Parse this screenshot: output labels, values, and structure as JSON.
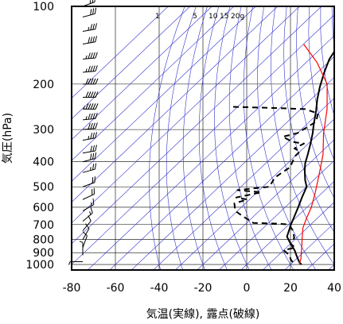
{
  "chart_data": {
    "type": "line",
    "title": "",
    "xlabel": "気温(実線), 露点(破線)",
    "ylabel": "気圧(hPa)",
    "x_ticks": [
      -80,
      -60,
      -40,
      -20,
      0,
      20,
      40
    ],
    "y_ticks": [
      100,
      200,
      300,
      400,
      500,
      600,
      700,
      800,
      900,
      1000
    ],
    "xlim": [
      -80,
      40
    ],
    "ylim": [
      1050,
      100
    ],
    "y_scale": "log",
    "grid": true,
    "mixing_ratio_labels": [
      "1",
      "5",
      "10",
      "15",
      "20g"
    ],
    "colors": {
      "temperature": "#000000",
      "dewpoint": "#000000",
      "reference": "#ff0000",
      "isopleths": "#3333cc",
      "grid": "#000000",
      "wind": "#000000"
    },
    "series": [
      {
        "name": "気温",
        "style": "solid",
        "points": [
          [
            -69,
            100
          ],
          [
            -68,
            108
          ],
          [
            -66,
            118
          ],
          [
            -65,
            130
          ],
          [
            -63,
            145
          ],
          [
            -61,
            160
          ],
          [
            -57,
            180
          ],
          [
            -52,
            205
          ],
          [
            -47,
            230
          ],
          [
            -42,
            255
          ],
          [
            -37,
            285
          ],
          [
            -33,
            310
          ],
          [
            -29,
            340
          ],
          [
            -25,
            375
          ],
          [
            -22,
            405
          ],
          [
            -19,
            430
          ],
          [
            -14,
            470
          ],
          [
            -10,
            500
          ],
          [
            -7,
            550
          ],
          [
            -4,
            600
          ],
          [
            1,
            700
          ],
          [
            5,
            780
          ],
          [
            10,
            830
          ],
          [
            15,
            880
          ],
          [
            19,
            930
          ],
          [
            23,
            980
          ],
          [
            25,
            1000
          ]
        ]
      },
      {
        "name": "露点",
        "style": "dashed",
        "points": [
          [
            -82,
            245
          ],
          [
            -60,
            248
          ],
          [
            -48,
            250
          ],
          [
            -40,
            260
          ],
          [
            -37,
            280
          ],
          [
            -40,
            310
          ],
          [
            -45,
            320
          ],
          [
            -38,
            335
          ],
          [
            -32,
            340
          ],
          [
            -34,
            355
          ],
          [
            -30,
            365
          ],
          [
            -30,
            380
          ],
          [
            -27,
            420
          ],
          [
            -29,
            460
          ],
          [
            -27,
            500
          ],
          [
            -40,
            515
          ],
          [
            -34,
            520
          ],
          [
            -28,
            525
          ],
          [
            -37,
            550
          ],
          [
            -31,
            560
          ],
          [
            -35,
            580
          ],
          [
            -31,
            620
          ],
          [
            -25,
            650
          ],
          [
            -17,
            690
          ],
          [
            -5,
            695
          ],
          [
            0,
            700
          ],
          [
            5,
            740
          ],
          [
            9,
            790
          ],
          [
            10,
            830
          ],
          [
            14,
            860
          ],
          [
            10,
            880
          ],
          [
            15,
            920
          ],
          [
            18,
            960
          ],
          [
            22,
            1000
          ]
        ]
      },
      {
        "name": "",
        "style": "solid-red",
        "points": [
          [
            -80,
            140
          ],
          [
            -65,
            165
          ],
          [
            -50,
            200
          ],
          [
            -38,
            250
          ],
          [
            -28,
            310
          ],
          [
            -18,
            375
          ],
          [
            -10,
            450
          ],
          [
            -3,
            530
          ],
          [
            2,
            600
          ],
          [
            5,
            660
          ],
          [
            8,
            720
          ],
          [
            12,
            780
          ],
          [
            17,
            860
          ],
          [
            22,
            950
          ],
          [
            24,
            1000
          ]
        ]
      }
    ],
    "wind_barbs": [
      {
        "p": 100,
        "dir": 250,
        "spd": 25
      },
      {
        "p": 110,
        "dir": 255,
        "spd": 30
      },
      {
        "p": 125,
        "dir": 260,
        "spd": 35
      },
      {
        "p": 140,
        "dir": 260,
        "spd": 40
      },
      {
        "p": 160,
        "dir": 265,
        "spd": 45
      },
      {
        "p": 180,
        "dir": 265,
        "spd": 45
      },
      {
        "p": 200,
        "dir": 270,
        "spd": 50
      },
      {
        "p": 225,
        "dir": 270,
        "spd": 50
      },
      {
        "p": 250,
        "dir": 270,
        "spd": 55
      },
      {
        "p": 275,
        "dir": 265,
        "spd": 45
      },
      {
        "p": 300,
        "dir": 265,
        "spd": 40
      },
      {
        "p": 330,
        "dir": 260,
        "spd": 35
      },
      {
        "p": 370,
        "dir": 260,
        "spd": 30
      },
      {
        "p": 400,
        "dir": 255,
        "spd": 30
      },
      {
        "p": 440,
        "dir": 255,
        "spd": 25
      },
      {
        "p": 500,
        "dir": 250,
        "spd": 20
      },
      {
        "p": 560,
        "dir": 245,
        "spd": 20
      },
      {
        "p": 620,
        "dir": 240,
        "spd": 15
      },
      {
        "p": 680,
        "dir": 230,
        "spd": 15
      },
      {
        "p": 740,
        "dir": 220,
        "spd": 10
      },
      {
        "p": 800,
        "dir": 210,
        "spd": 10
      },
      {
        "p": 860,
        "dir": 200,
        "spd": 10
      },
      {
        "p": 920,
        "dir": 180,
        "spd": 5
      },
      {
        "p": 975,
        "dir": 90,
        "spd": 5
      }
    ]
  }
}
